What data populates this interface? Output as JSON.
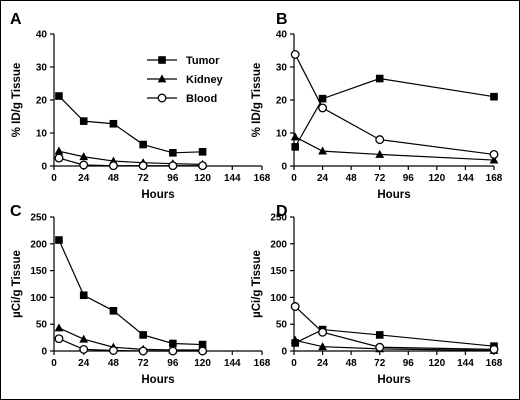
{
  "chart_data": [
    {
      "type": "line",
      "panel": "A",
      "xlabel": "Hours",
      "ylabel": "% ID/g Tissue",
      "xlim": [
        0,
        168
      ],
      "ylim": [
        0,
        40
      ],
      "xticks": [
        0,
        24,
        48,
        72,
        96,
        120,
        144,
        168
      ],
      "yticks": [
        0,
        10,
        20,
        30,
        40
      ],
      "legend": {
        "placement": "top-right",
        "entries": [
          "Tumor",
          "Kidney",
          "Blood"
        ]
      },
      "series": [
        {
          "name": "Tumor",
          "marker": "square-filled",
          "x": [
            4,
            24,
            48,
            72,
            96,
            120
          ],
          "y": [
            21.2,
            13.6,
            12.8,
            6.5,
            4.0,
            4.3
          ]
        },
        {
          "name": "Kidney",
          "marker": "triangle-filled",
          "x": [
            4,
            24,
            48,
            72,
            96,
            120
          ],
          "y": [
            4.5,
            2.8,
            1.5,
            1.0,
            0.7,
            0.5
          ]
        },
        {
          "name": "Blood",
          "marker": "circle-open",
          "x": [
            4,
            24,
            48,
            72,
            96,
            120
          ],
          "y": [
            2.4,
            0.3,
            0.1,
            0.1,
            0.1,
            0.1
          ]
        }
      ]
    },
    {
      "type": "line",
      "panel": "B",
      "xlabel": "Hours",
      "ylabel": "% ID/g Tissue",
      "xlim": [
        0,
        168
      ],
      "ylim": [
        0,
        40
      ],
      "xticks": [
        0,
        24,
        48,
        72,
        96,
        120,
        144,
        168
      ],
      "yticks": [
        0,
        10,
        20,
        30,
        40
      ],
      "series": [
        {
          "name": "Tumor",
          "marker": "square-filled",
          "x": [
            1,
            24,
            72,
            168
          ],
          "y": [
            5.8,
            20.4,
            26.5,
            21.0
          ]
        },
        {
          "name": "Kidney",
          "marker": "triangle-filled",
          "x": [
            1,
            24,
            72,
            168
          ],
          "y": [
            8.8,
            4.5,
            3.5,
            1.8
          ]
        },
        {
          "name": "Blood",
          "marker": "circle-open",
          "x": [
            1,
            24,
            72,
            168
          ],
          "y": [
            33.8,
            17.6,
            8.0,
            3.5
          ]
        }
      ]
    },
    {
      "type": "line",
      "panel": "C",
      "xlabel": "Hours",
      "ylabel": "µCi/g Tissue",
      "xlim": [
        0,
        168
      ],
      "ylim": [
        0,
        250
      ],
      "xticks": [
        0,
        24,
        48,
        72,
        96,
        120,
        144,
        168
      ],
      "yticks": [
        0,
        50,
        100,
        150,
        200,
        250
      ],
      "series": [
        {
          "name": "Tumor",
          "marker": "square-filled",
          "x": [
            4,
            24,
            48,
            72,
            96,
            120
          ],
          "y": [
            207,
            104,
            75,
            30,
            14,
            12
          ]
        },
        {
          "name": "Kidney",
          "marker": "triangle-filled",
          "x": [
            4,
            24,
            48,
            72,
            96,
            120
          ],
          "y": [
            43,
            22,
            7,
            3,
            2,
            2
          ]
        },
        {
          "name": "Blood",
          "marker": "circle-open",
          "x": [
            4,
            24,
            48,
            72,
            96,
            120
          ],
          "y": [
            23,
            3,
            1,
            0,
            0,
            0
          ]
        }
      ]
    },
    {
      "type": "line",
      "panel": "D",
      "xlabel": "Hours",
      "ylabel": "µCi/g Tissue",
      "xlim": [
        0,
        168
      ],
      "ylim": [
        0,
        250
      ],
      "xticks": [
        0,
        24,
        48,
        72,
        96,
        120,
        144,
        168
      ],
      "yticks": [
        0,
        50,
        100,
        150,
        200,
        250
      ],
      "series": [
        {
          "name": "Tumor",
          "marker": "square-filled",
          "x": [
            1,
            24,
            72,
            168
          ],
          "y": [
            15,
            40,
            30,
            9
          ]
        },
        {
          "name": "Kidney",
          "marker": "triangle-filled",
          "x": [
            1,
            24,
            72,
            168
          ],
          "y": [
            20,
            8,
            4,
            1
          ]
        },
        {
          "name": "Blood",
          "marker": "circle-open",
          "x": [
            1,
            24,
            72,
            168
          ],
          "y": [
            83,
            35,
            7,
            3
          ]
        }
      ]
    }
  ]
}
